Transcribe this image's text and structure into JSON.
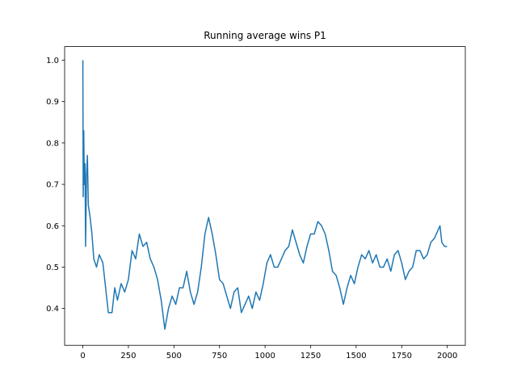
{
  "chart_data": {
    "type": "line",
    "title": "Running average wins P1",
    "x": [
      0,
      2,
      5,
      8,
      12,
      15,
      20,
      25,
      30,
      40,
      50,
      60,
      75,
      90,
      110,
      125,
      140,
      160,
      175,
      190,
      210,
      230,
      250,
      270,
      290,
      310,
      330,
      350,
      370,
      390,
      410,
      430,
      450,
      470,
      490,
      510,
      530,
      550,
      570,
      590,
      610,
      630,
      650,
      670,
      690,
      710,
      730,
      750,
      770,
      790,
      810,
      830,
      850,
      870,
      890,
      910,
      930,
      950,
      970,
      990,
      1010,
      1030,
      1050,
      1070,
      1090,
      1110,
      1130,
      1150,
      1170,
      1190,
      1210,
      1230,
      1250,
      1270,
      1290,
      1310,
      1330,
      1350,
      1370,
      1390,
      1410,
      1430,
      1450,
      1470,
      1490,
      1510,
      1530,
      1550,
      1570,
      1590,
      1610,
      1630,
      1650,
      1670,
      1690,
      1710,
      1730,
      1750,
      1770,
      1790,
      1810,
      1830,
      1850,
      1870,
      1890,
      1910,
      1930,
      1950,
      1960,
      1970,
      1985,
      1999
    ],
    "series": [
      {
        "color": "#1f77b4",
        "values": [
          1.0,
          0.67,
          0.83,
          0.7,
          0.75,
          0.55,
          0.72,
          0.77,
          0.65,
          0.62,
          0.58,
          0.52,
          0.5,
          0.53,
          0.51,
          0.45,
          0.39,
          0.39,
          0.45,
          0.42,
          0.46,
          0.44,
          0.47,
          0.54,
          0.52,
          0.58,
          0.55,
          0.56,
          0.52,
          0.5,
          0.47,
          0.42,
          0.35,
          0.4,
          0.43,
          0.41,
          0.45,
          0.45,
          0.49,
          0.44,
          0.41,
          0.44,
          0.5,
          0.58,
          0.62,
          0.58,
          0.53,
          0.47,
          0.46,
          0.43,
          0.4,
          0.44,
          0.45,
          0.39,
          0.41,
          0.43,
          0.4,
          0.44,
          0.42,
          0.46,
          0.51,
          0.53,
          0.5,
          0.5,
          0.52,
          0.54,
          0.55,
          0.59,
          0.56,
          0.53,
          0.51,
          0.55,
          0.58,
          0.58,
          0.61,
          0.6,
          0.58,
          0.54,
          0.49,
          0.48,
          0.45,
          0.41,
          0.45,
          0.48,
          0.46,
          0.5,
          0.53,
          0.52,
          0.54,
          0.51,
          0.53,
          0.5,
          0.5,
          0.52,
          0.49,
          0.53,
          0.54,
          0.51,
          0.47,
          0.49,
          0.5,
          0.54,
          0.54,
          0.52,
          0.53,
          0.56,
          0.57,
          0.59,
          0.6,
          0.56,
          0.55,
          0.55
        ]
      }
    ],
    "xlim": [
      -100,
      2099
    ],
    "ylim": [
      0.311,
      1.033
    ],
    "xticks": [
      0,
      250,
      500,
      750,
      1000,
      1250,
      1500,
      1750,
      2000
    ],
    "yticks": [
      0.4,
      0.5,
      0.6,
      0.7,
      0.8,
      0.9,
      {
        "value": 1,
        "label": "1.0"
      }
    ],
    "grid": false
  }
}
